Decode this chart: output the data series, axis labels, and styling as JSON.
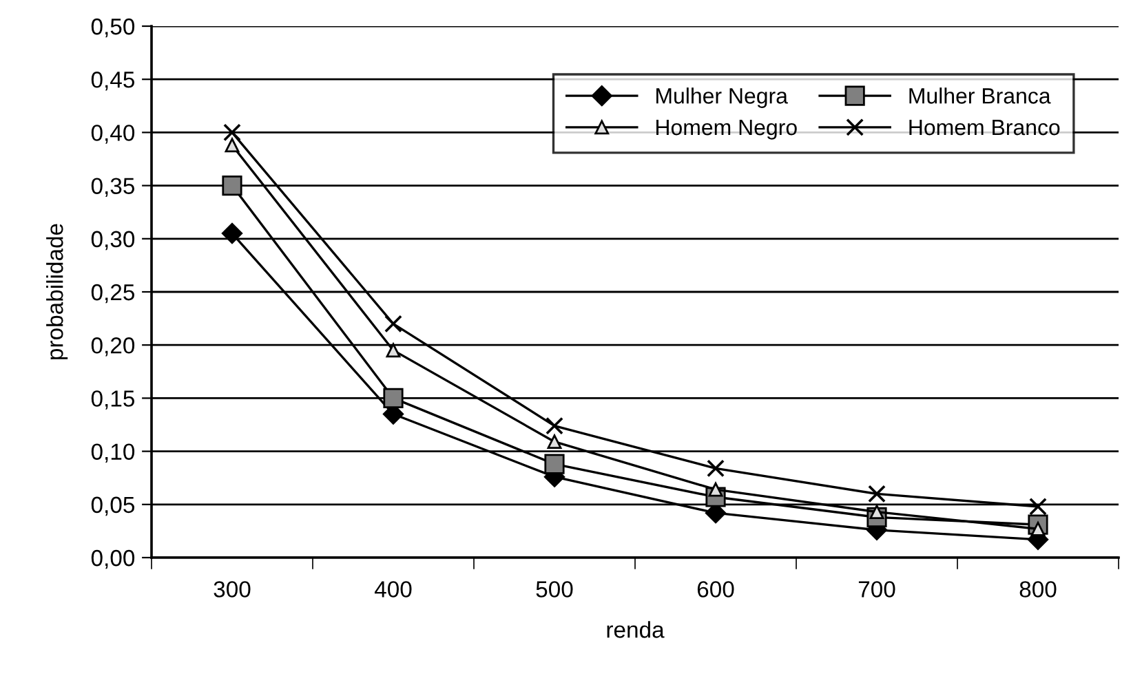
{
  "chart_data": {
    "type": "line",
    "xlabel": "renda",
    "ylabel": "probabilidade",
    "categories": [
      "300",
      "400",
      "500",
      "600",
      "700",
      "800"
    ],
    "series": [
      {
        "name": "Mulher Negra",
        "color": "#000000",
        "marker": "diamond",
        "values": [
          0.305,
          0.135,
          0.076,
          0.042,
          0.026,
          0.017
        ]
      },
      {
        "name": "Mulher Branca",
        "color": "#808080",
        "marker": "square",
        "values": [
          0.35,
          0.15,
          0.088,
          0.057,
          0.038,
          0.031
        ]
      },
      {
        "name": "Homem Negro",
        "color": "#e0e0e0",
        "marker": "triangle",
        "values": [
          0.388,
          0.195,
          0.109,
          0.064,
          0.043,
          0.027
        ]
      },
      {
        "name": "Homem Branco",
        "color": "#000000",
        "marker": "cross",
        "values": [
          0.4,
          0.22,
          0.124,
          0.084,
          0.06,
          0.048
        ]
      }
    ],
    "ylim": [
      0,
      0.5
    ],
    "yticks": [
      {
        "value": 0,
        "label": "0,00"
      },
      {
        "value": 0.05,
        "label": "0,05"
      },
      {
        "value": 0.1,
        "label": "0,10"
      },
      {
        "value": 0.15,
        "label": "0,15"
      },
      {
        "value": 0.2,
        "label": "0,20"
      },
      {
        "value": 0.25,
        "label": "0,25"
      },
      {
        "value": 0.3,
        "label": "0,30"
      },
      {
        "value": 0.35,
        "label": "0,35"
      },
      {
        "value": 0.4,
        "label": "0,40"
      },
      {
        "value": 0.45,
        "label": "0,45"
      },
      {
        "value": 0.5,
        "label": "0,50"
      }
    ],
    "grid": "y",
    "legend": "top right",
    "line_style": "solid"
  }
}
